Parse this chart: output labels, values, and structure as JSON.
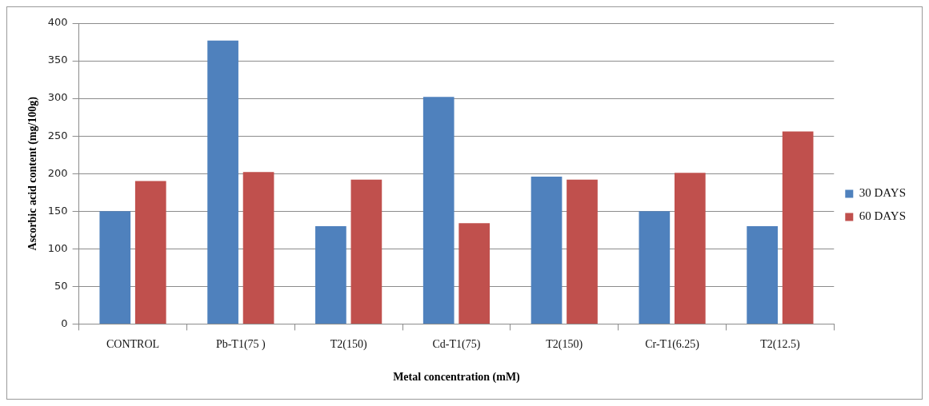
{
  "chart_data": {
    "type": "bar",
    "xlabel": "Metal concentration (mM)",
    "ylabel": "Ascorbic acid content (mg/100g)",
    "categories": [
      "CONTROL",
      "Pb-T1(75 )",
      "T2(150)",
      "Cd-T1(75)",
      "T2(150)",
      "Cr-T1(6.25)",
      "T2(12.5)"
    ],
    "series": [
      {
        "name": "30 DAYS",
        "color": "#4f81bd",
        "values": [
          150,
          377,
          130,
          302,
          196,
          150,
          130
        ]
      },
      {
        "name": "60 DAYS",
        "color": "#c0504d",
        "values": [
          190,
          202,
          192,
          134,
          192,
          201,
          256
        ]
      }
    ],
    "ylim": [
      0,
      400
    ],
    "yticks": [
      0,
      50,
      100,
      150,
      200,
      250,
      300,
      350,
      400
    ],
    "grid": "y",
    "legend": "right"
  }
}
